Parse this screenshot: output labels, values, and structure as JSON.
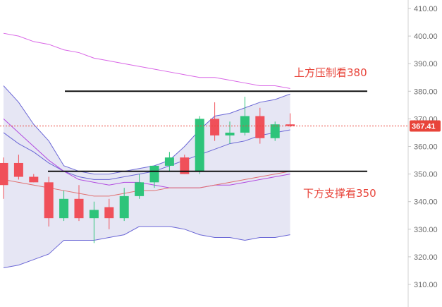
{
  "chart_data": {
    "type": "candlestick",
    "y_axis": {
      "ticks": [
        "310.00",
        "320.00",
        "330.00",
        "340.00",
        "350.00",
        "360.00",
        "370.00",
        "380.00",
        "390.00",
        "400.00",
        "410.00"
      ],
      "range": [
        305,
        412
      ],
      "side": "right"
    },
    "current_price": {
      "value": 367.41,
      "label": "367.41",
      "color": "#e8443a"
    },
    "candles": [
      {
        "o": 354,
        "h": 356,
        "l": 341,
        "c": 346
      },
      {
        "o": 354,
        "h": 357,
        "l": 348,
        "c": 349
      },
      {
        "o": 349,
        "h": 350,
        "l": 347,
        "c": 347
      },
      {
        "o": 347,
        "h": 349,
        "l": 331,
        "c": 334
      },
      {
        "o": 334,
        "h": 344,
        "l": 333,
        "c": 341
      },
      {
        "o": 341,
        "h": 346,
        "l": 333,
        "c": 334
      },
      {
        "o": 334,
        "h": 340,
        "l": 325,
        "c": 337
      },
      {
        "o": 338,
        "h": 341,
        "l": 330,
        "c": 334
      },
      {
        "o": 334,
        "h": 345,
        "l": 333,
        "c": 342
      },
      {
        "o": 342,
        "h": 350,
        "l": 341,
        "c": 347
      },
      {
        "o": 347,
        "h": 353,
        "l": 345,
        "c": 353
      },
      {
        "o": 353,
        "h": 358,
        "l": 351,
        "c": 356
      },
      {
        "o": 356,
        "h": 357,
        "l": 350,
        "c": 350
      },
      {
        "o": 351,
        "h": 371,
        "l": 350,
        "c": 370
      },
      {
        "o": 370,
        "h": 376,
        "l": 362,
        "c": 364
      },
      {
        "o": 364,
        "h": 369,
        "l": 361,
        "c": 365
      },
      {
        "o": 365,
        "h": 378,
        "l": 364,
        "c": 371
      },
      {
        "o": 371,
        "h": 374,
        "l": 361,
        "c": 363
      },
      {
        "o": 363,
        "h": 369,
        "l": 362,
        "c": 368
      },
      {
        "o": 368,
        "h": 372,
        "l": 367,
        "c": 367.41
      }
    ],
    "series": [
      {
        "values": [
          382,
          376,
          368,
          362,
          353,
          351,
          350,
          350,
          351,
          352,
          353,
          355,
          360,
          366,
          371,
          372,
          374,
          376,
          377,
          379
        ],
        "color": "#6b67d6"
      },
      {
        "values": [
          365,
          361,
          358,
          354,
          351,
          349,
          348,
          348,
          349,
          350,
          351,
          353,
          355,
          357,
          359,
          361,
          362,
          364,
          365,
          366
        ],
        "color": "#6b67d6"
      },
      {
        "values": [
          316,
          317,
          319,
          321,
          326,
          326,
          326,
          327,
          328,
          331,
          331,
          331,
          330,
          328,
          327,
          327,
          326,
          327,
          327,
          328
        ],
        "color": "#6b67d6"
      },
      {
        "values": [
          370,
          365,
          360,
          355,
          351,
          348,
          347,
          346,
          347,
          347,
          346,
          345,
          345,
          345,
          346,
          346,
          347,
          348,
          349,
          350
        ],
        "color": "#b24be0"
      },
      {
        "values": [
          348,
          347,
          346,
          345,
          344,
          343,
          342,
          342,
          343,
          344,
          344,
          345,
          345,
          345,
          346,
          347,
          348,
          349,
          350,
          351
        ],
        "color": "#e07070"
      },
      {
        "values": [
          401,
          400,
          398,
          397,
          395,
          394,
          392,
          391,
          390,
          389,
          388,
          387,
          386,
          385,
          385,
          384,
          383,
          382,
          382,
          381
        ],
        "color": "#d966e6"
      }
    ],
    "support_line": {
      "value": 351
    },
    "resistance_line": {
      "value": 380
    },
    "annotations": [
      {
        "text": "上方压制看380"
      },
      {
        "text": "下方支撑看350"
      }
    ],
    "colors": {
      "up": "#2ec47a",
      "down": "#f0505a",
      "band_fill": "#dcdcf0",
      "hline": "#111111"
    }
  }
}
